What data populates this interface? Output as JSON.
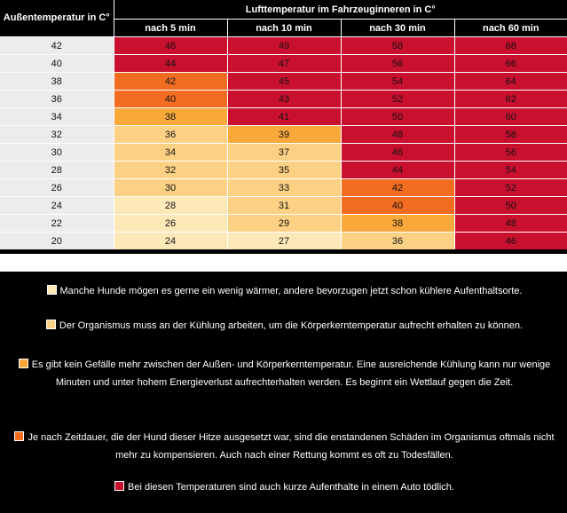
{
  "table": {
    "header_outside": "Außentemperatur in C°",
    "header_inside": "Lufttemperatur im Fahrzeuginneren in C°",
    "columns": [
      "nach 5 min",
      "nach 10 min",
      "nach 30 min",
      "nach 60 min"
    ],
    "rows": [
      {
        "outside": "42",
        "values": [
          "46",
          "49",
          "58",
          "68"
        ],
        "levels": [
          5,
          5,
          5,
          5
        ]
      },
      {
        "outside": "40",
        "values": [
          "44",
          "47",
          "56",
          "66"
        ],
        "levels": [
          5,
          5,
          5,
          5
        ]
      },
      {
        "outside": "38",
        "values": [
          "42",
          "45",
          "54",
          "64"
        ],
        "levels": [
          4,
          5,
          5,
          5
        ]
      },
      {
        "outside": "36",
        "values": [
          "40",
          "43",
          "52",
          "62"
        ],
        "levels": [
          4,
          5,
          5,
          5
        ]
      },
      {
        "outside": "34",
        "values": [
          "38",
          "41",
          "50",
          "60"
        ],
        "levels": [
          3,
          5,
          5,
          5
        ]
      },
      {
        "outside": "32",
        "values": [
          "36",
          "39",
          "48",
          "58"
        ],
        "levels": [
          2,
          3,
          5,
          5
        ]
      },
      {
        "outside": "30",
        "values": [
          "34",
          "37",
          "46",
          "56"
        ],
        "levels": [
          2,
          2,
          5,
          5
        ]
      },
      {
        "outside": "28",
        "values": [
          "32",
          "35",
          "44",
          "54"
        ],
        "levels": [
          2,
          2,
          5,
          5
        ]
      },
      {
        "outside": "26",
        "values": [
          "30",
          "33",
          "42",
          "52"
        ],
        "levels": [
          2,
          2,
          4,
          5
        ]
      },
      {
        "outside": "24",
        "values": [
          "28",
          "31",
          "40",
          "50"
        ],
        "levels": [
          1,
          2,
          4,
          5
        ]
      },
      {
        "outside": "22",
        "values": [
          "26",
          "29",
          "38",
          "48"
        ],
        "levels": [
          1,
          2,
          3,
          5
        ]
      },
      {
        "outside": "20",
        "values": [
          "24",
          "27",
          "36",
          "46"
        ],
        "levels": [
          1,
          1,
          2,
          5
        ]
      }
    ]
  },
  "colors": {
    "level1": "#fde9b8",
    "level2": "#fcd183",
    "level3": "#f8a93a",
    "level4": "#f26c22",
    "level5": "#c9102f"
  },
  "legend": [
    {
      "level": 1,
      "text": "Manche Hunde mögen es gerne ein wenig wärmer, andere bevorzugen jetzt schon kühlere Aufenthaltsorte."
    },
    {
      "level": 2,
      "text": "Der Organismus muss an der Kühlung arbeiten, um die Körperkerntemperatur aufrecht erhalten zu können."
    },
    {
      "level": 3,
      "text": "Es gibt kein Gefälle mehr zwischen der Außen- und Körperkerntemperatur. Eine ausreichende Kühlung kann nur wenige Minuten und unter hohem Energieverlust aufrechterhalten werden. Es beginnt ein Wettlauf gegen die Zeit."
    },
    {
      "level": 4,
      "text": "Je nach Zeitdauer, die der Hund dieser Hitze ausgesetzt war, sind die enstandenen Schäden im Organismus oftmals nicht mehr zu kompensieren. Auch nach einer Rettung kommt es oft zu Todesfällen."
    },
    {
      "level": 5,
      "text": "Bei diesen Temperaturen sind auch kurze Aufenthalte in einem Auto tödlich."
    }
  ]
}
